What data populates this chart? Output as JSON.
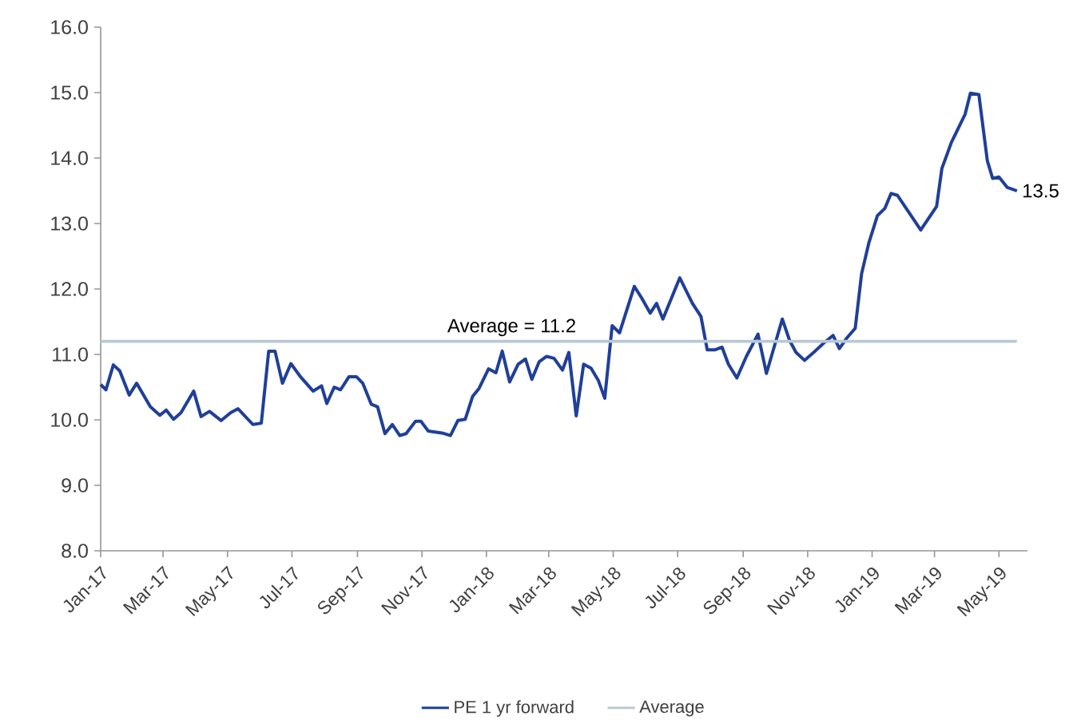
{
  "chart_data": {
    "type": "line",
    "xlim": [
      "2017-01-01",
      "2019-05-28"
    ],
    "ylim": [
      8,
      16
    ],
    "xticks": [
      {
        "value": "2017-01-01",
        "label": "Jan-17"
      },
      {
        "value": "2017-03-01",
        "label": "Mar-17"
      },
      {
        "value": "2017-05-01",
        "label": "May-17"
      },
      {
        "value": "2017-07-01",
        "label": "Jul-17"
      },
      {
        "value": "2017-09-01",
        "label": "Sep-17"
      },
      {
        "value": "2017-11-01",
        "label": "Nov-17"
      },
      {
        "value": "2018-01-01",
        "label": "Jan-18"
      },
      {
        "value": "2018-03-01",
        "label": "Mar-18"
      },
      {
        "value": "2018-05-01",
        "label": "May-18"
      },
      {
        "value": "2018-07-01",
        "label": "Jul-18"
      },
      {
        "value": "2018-09-01",
        "label": "Sep-18"
      },
      {
        "value": "2018-11-01",
        "label": "Nov-18"
      },
      {
        "value": "2019-01-01",
        "label": "Jan-19"
      },
      {
        "value": "2019-03-01",
        "label": "Mar-19"
      },
      {
        "value": "2019-05-01",
        "label": "May-19"
      }
    ],
    "yticks": [
      {
        "value": 8,
        "label": "8.0"
      },
      {
        "value": 9,
        "label": "9.0"
      },
      {
        "value": 10,
        "label": "10.0"
      },
      {
        "value": 11,
        "label": "11.0"
      },
      {
        "value": 12,
        "label": "12.0"
      },
      {
        "value": 13,
        "label": "13.0"
      },
      {
        "value": 14,
        "label": "14.0"
      },
      {
        "value": 15,
        "label": "15.0"
      },
      {
        "value": 16,
        "label": "16.0"
      }
    ],
    "marker": "none",
    "line_style": "solid",
    "legend": "bottom",
    "annotations": [
      {
        "text": "Average = 11.2",
        "x": "2018-01-25",
        "y": 11.2
      }
    ],
    "series": [
      {
        "name": "PE 1 yr forward",
        "color": "#1f3f99",
        "x": [
          "2017-01-01",
          "2017-01-06",
          "2017-01-13",
          "2017-01-19",
          "2017-01-28",
          "2017-02-04",
          "2017-02-17",
          "2017-02-26",
          "2017-03-04",
          "2017-03-11",
          "2017-03-18",
          "2017-03-30",
          "2017-04-06",
          "2017-04-14",
          "2017-04-25",
          "2017-05-04",
          "2017-05-11",
          "2017-05-25",
          "2017-06-02",
          "2017-06-09",
          "2017-06-15",
          "2017-06-22",
          "2017-06-30",
          "2017-07-09",
          "2017-07-21",
          "2017-07-29",
          "2017-08-03",
          "2017-08-10",
          "2017-08-16",
          "2017-08-24",
          "2017-08-31",
          "2017-09-06",
          "2017-09-14",
          "2017-09-20",
          "2017-09-27",
          "2017-10-04",
          "2017-10-11",
          "2017-10-17",
          "2017-10-26",
          "2017-10-31",
          "2017-11-07",
          "2017-11-20",
          "2017-11-28",
          "2017-12-05",
          "2017-12-12",
          "2017-12-19",
          "2017-12-25",
          "2018-01-03",
          "2018-01-10",
          "2018-01-16",
          "2018-01-23",
          "2018-01-31",
          "2018-02-07",
          "2018-02-13",
          "2018-02-20",
          "2018-02-27",
          "2018-03-06",
          "2018-03-14",
          "2018-03-20",
          "2018-03-27",
          "2018-04-03",
          "2018-04-10",
          "2018-04-17",
          "2018-04-23",
          "2018-04-30",
          "2018-05-07",
          "2018-05-21",
          "2018-05-28",
          "2018-06-05",
          "2018-06-11",
          "2018-06-17",
          "2018-07-03",
          "2018-07-15",
          "2018-07-23",
          "2018-07-29",
          "2018-08-05",
          "2018-08-12",
          "2018-08-18",
          "2018-08-26",
          "2018-09-04",
          "2018-09-15",
          "2018-09-23",
          "2018-10-08",
          "2018-10-15",
          "2018-10-21",
          "2018-10-29",
          "2018-11-08",
          "2018-11-16",
          "2018-11-25",
          "2018-12-01",
          "2018-12-08",
          "2018-12-16",
          "2018-12-22",
          "2018-12-29",
          "2019-01-06",
          "2019-01-13",
          "2019-01-19",
          "2019-01-25",
          "2019-02-16",
          "2019-03-03",
          "2019-03-08",
          "2019-03-17",
          "2019-03-30",
          "2019-04-04",
          "2019-04-12",
          "2019-04-20",
          "2019-04-25",
          "2019-05-01",
          "2019-05-09",
          "2019-05-18"
        ],
        "values": [
          10.54,
          10.46,
          10.84,
          10.75,
          10.38,
          10.56,
          10.2,
          10.07,
          10.15,
          10.01,
          10.11,
          10.44,
          10.05,
          10.13,
          9.99,
          10.11,
          10.17,
          9.93,
          9.95,
          11.05,
          11.05,
          10.56,
          10.86,
          10.66,
          10.44,
          10.52,
          10.25,
          10.5,
          10.46,
          10.66,
          10.66,
          10.56,
          10.24,
          10.2,
          9.79,
          9.93,
          9.76,
          9.79,
          9.98,
          9.98,
          9.83,
          9.8,
          9.76,
          9.99,
          10.01,
          10.36,
          10.48,
          10.78,
          10.72,
          11.05,
          10.58,
          10.85,
          10.93,
          10.62,
          10.89,
          10.97,
          10.94,
          10.76,
          11.03,
          10.06,
          10.85,
          10.79,
          10.6,
          10.33,
          11.44,
          11.33,
          12.04,
          11.86,
          11.63,
          11.78,
          11.54,
          12.17,
          11.78,
          11.58,
          11.07,
          11.07,
          11.11,
          10.85,
          10.64,
          10.97,
          11.31,
          10.71,
          11.54,
          11.21,
          11.03,
          10.91,
          11.05,
          11.17,
          11.29,
          11.09,
          11.25,
          11.4,
          12.23,
          12.71,
          13.12,
          13.23,
          13.46,
          13.43,
          12.9,
          13.26,
          13.84,
          14.24,
          14.67,
          14.99,
          14.97,
          13.96,
          13.69,
          13.71,
          13.55,
          13.5
        ],
        "value_labels": [
          null,
          null,
          null,
          null,
          null,
          null,
          null,
          null,
          null,
          null,
          null,
          null,
          null,
          null,
          null,
          null,
          null,
          null,
          null,
          null,
          null,
          null,
          null,
          null,
          null,
          null,
          null,
          null,
          null,
          null,
          null,
          null,
          null,
          null,
          null,
          null,
          null,
          null,
          null,
          null,
          null,
          null,
          null,
          null,
          null,
          null,
          null,
          null,
          null,
          null,
          null,
          null,
          null,
          null,
          null,
          null,
          null,
          null,
          null,
          null,
          null,
          null,
          null,
          null,
          null,
          null,
          null,
          null,
          null,
          null,
          null,
          null,
          null,
          null,
          null,
          null,
          null,
          null,
          null,
          null,
          null,
          null,
          null,
          null,
          null,
          null,
          null,
          null,
          null,
          null,
          null,
          null,
          null,
          null,
          null,
          null,
          null,
          null,
          null,
          null,
          null,
          null,
          null,
          null,
          null,
          null,
          null,
          null,
          null,
          "13.5"
        ]
      },
      {
        "name": "Average",
        "color": "#b8c9d4",
        "x": [
          "2017-01-01",
          "2019-05-18"
        ],
        "values": [
          11.2,
          11.2
        ]
      }
    ]
  }
}
